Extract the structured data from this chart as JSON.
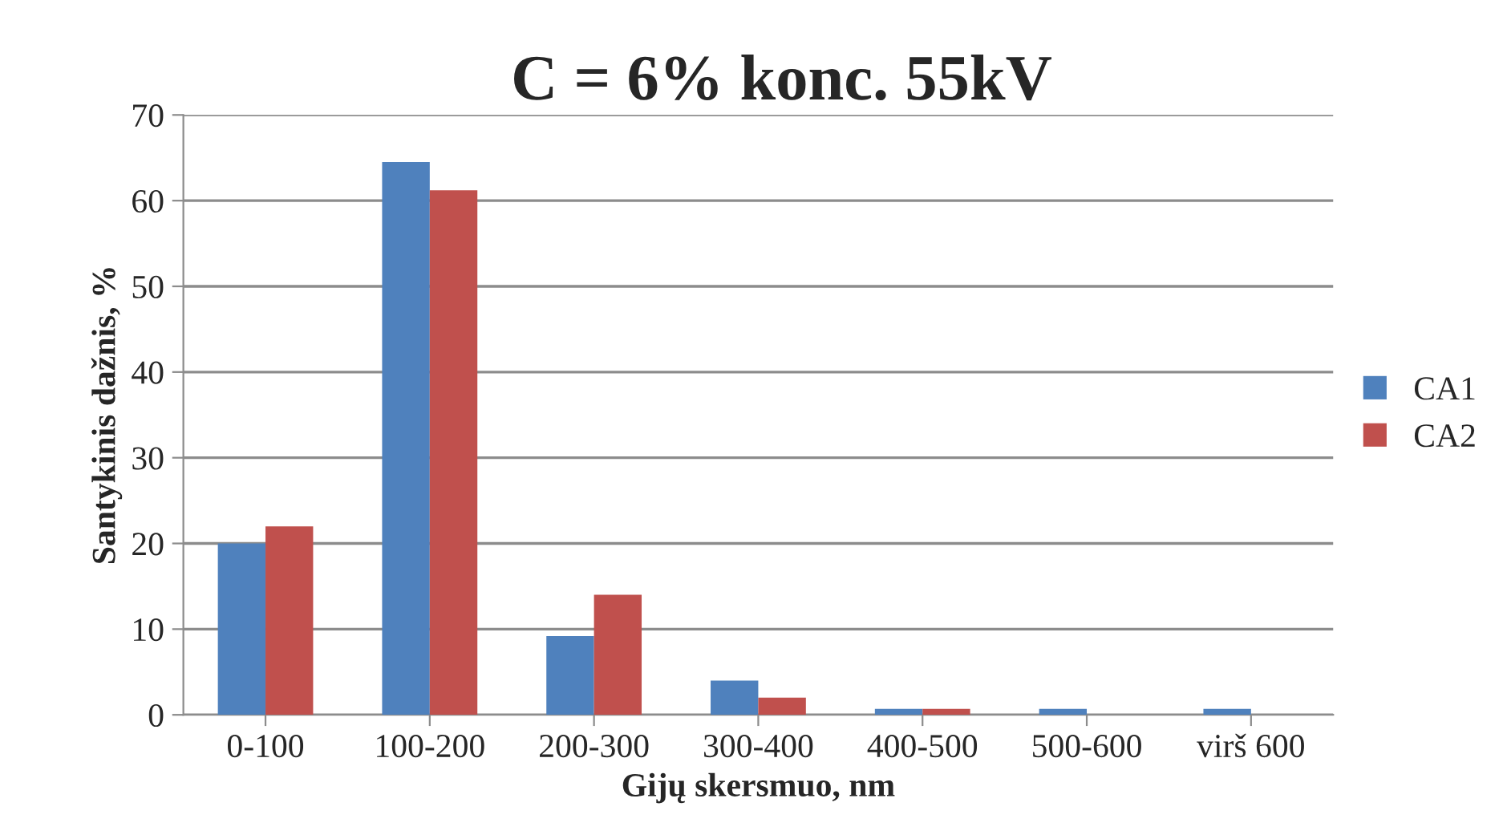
{
  "chart_data": {
    "type": "bar",
    "title": "C = 6% konc. 55kV",
    "xlabel": "Gijų skersmuo, nm",
    "ylabel": "Santykinis dažnis, %",
    "categories": [
      "0-100",
      "100-200",
      "200-300",
      "300-400",
      "400-500",
      "500-600",
      "virš 600"
    ],
    "series": [
      {
        "name": "CA1",
        "color": "#4f81bd",
        "values": [
          20,
          64.5,
          9.2,
          4,
          0.7,
          0.7,
          0.7
        ]
      },
      {
        "name": "CA2",
        "color": "#c0504d",
        "values": [
          22,
          61.2,
          14,
          2,
          0.7,
          0,
          0
        ]
      }
    ],
    "ylim": [
      0,
      70
    ],
    "yticks": [
      0,
      10,
      20,
      30,
      40,
      50,
      60,
      70
    ],
    "grid": "y",
    "legend": "right"
  }
}
